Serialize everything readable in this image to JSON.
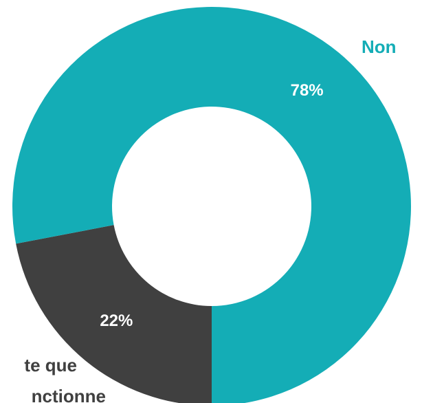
{
  "chart_data": {
    "type": "donut",
    "categories": [
      "Non",
      [
        "te que",
        "nctionne"
      ]
    ],
    "values": [
      78,
      22
    ],
    "value_labels": [
      "78%",
      "22%"
    ],
    "colors": [
      "#14adb6",
      "#404040"
    ],
    "label_colors": [
      "#14adb6",
      "#404040"
    ]
  }
}
